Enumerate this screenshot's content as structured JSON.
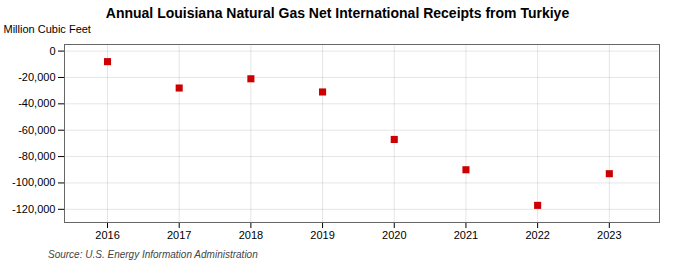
{
  "chart_data": {
    "type": "scatter",
    "title": "Annual Louisiana Natural Gas Net International Receipts from Turkiye",
    "ylabel": "Million Cubic Feet",
    "source": "Source: U.S. Energy Information Administration",
    "x": [
      2016,
      2017,
      2018,
      2019,
      2020,
      2021,
      2022,
      2023
    ],
    "values": [
      -8000,
      -28000,
      -21000,
      -31000,
      -67000,
      -90000,
      -117000,
      -93000
    ],
    "color": "#cc0000",
    "marker": "square",
    "xlim": [
      2015.4,
      2023.7
    ],
    "xticks": [
      2016,
      2017,
      2018,
      2019,
      2020,
      2021,
      2022,
      2023
    ],
    "ylim": [
      -130000,
      5000
    ],
    "yticks": [
      0,
      {
        "value": -20000,
        "label": "-20,000"
      },
      {
        "value": -40000,
        "label": "-40,000"
      },
      {
        "value": -60000,
        "label": "-60,000"
      },
      {
        "value": -80000,
        "label": "-80,000"
      },
      {
        "value": -100000,
        "label": "-100,000"
      },
      {
        "value": -120000,
        "label": "-120,000"
      }
    ],
    "grid": true
  }
}
